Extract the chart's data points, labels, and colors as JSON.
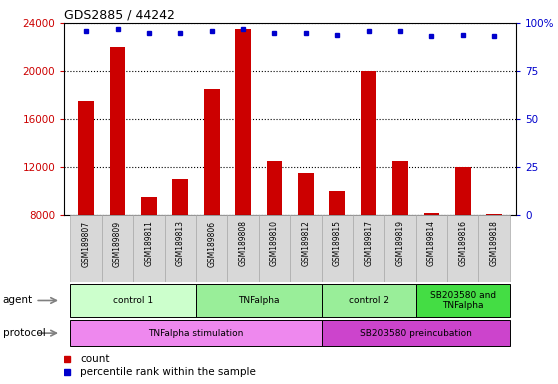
{
  "title": "GDS2885 / 44242",
  "samples": [
    "GSM189807",
    "GSM189809",
    "GSM189811",
    "GSM189813",
    "GSM189806",
    "GSM189808",
    "GSM189810",
    "GSM189812",
    "GSM189815",
    "GSM189817",
    "GSM189819",
    "GSM189814",
    "GSM189816",
    "GSM189818"
  ],
  "counts": [
    17500,
    22000,
    9500,
    11000,
    18500,
    23500,
    12500,
    11500,
    10000,
    20000,
    12500,
    8200,
    12000,
    8100
  ],
  "percentile_ranks": [
    96,
    97,
    95,
    95,
    96,
    97,
    95,
    95,
    94,
    96,
    96,
    93,
    94,
    93
  ],
  "bar_color": "#cc0000",
  "dot_color": "#0000cc",
  "ylim_left": [
    8000,
    24000
  ],
  "ylim_right": [
    0,
    100
  ],
  "yticks_left": [
    8000,
    12000,
    16000,
    20000,
    24000
  ],
  "yticks_right": [
    0,
    25,
    50,
    75,
    100
  ],
  "agent_groups": [
    {
      "label": "control 1",
      "start": 0,
      "end": 4,
      "color": "#ccffcc"
    },
    {
      "label": "TNFalpha",
      "start": 4,
      "end": 8,
      "color": "#99ee99"
    },
    {
      "label": "control 2",
      "start": 8,
      "end": 11,
      "color": "#99ee99"
    },
    {
      "label": "SB203580 and\nTNFalpha",
      "start": 11,
      "end": 14,
      "color": "#44dd44"
    }
  ],
  "protocol_groups": [
    {
      "label": "TNFalpha stimulation",
      "start": 0,
      "end": 8,
      "color": "#ee88ee"
    },
    {
      "label": "SB203580 preincubation",
      "start": 8,
      "end": 14,
      "color": "#cc44cc"
    }
  ],
  "agent_label": "agent",
  "protocol_label": "protocol",
  "legend_count_label": "count",
  "legend_percentile_label": "percentile rank within the sample",
  "sample_box_color": "#d8d8d8",
  "sample_box_edge": "#aaaaaa"
}
